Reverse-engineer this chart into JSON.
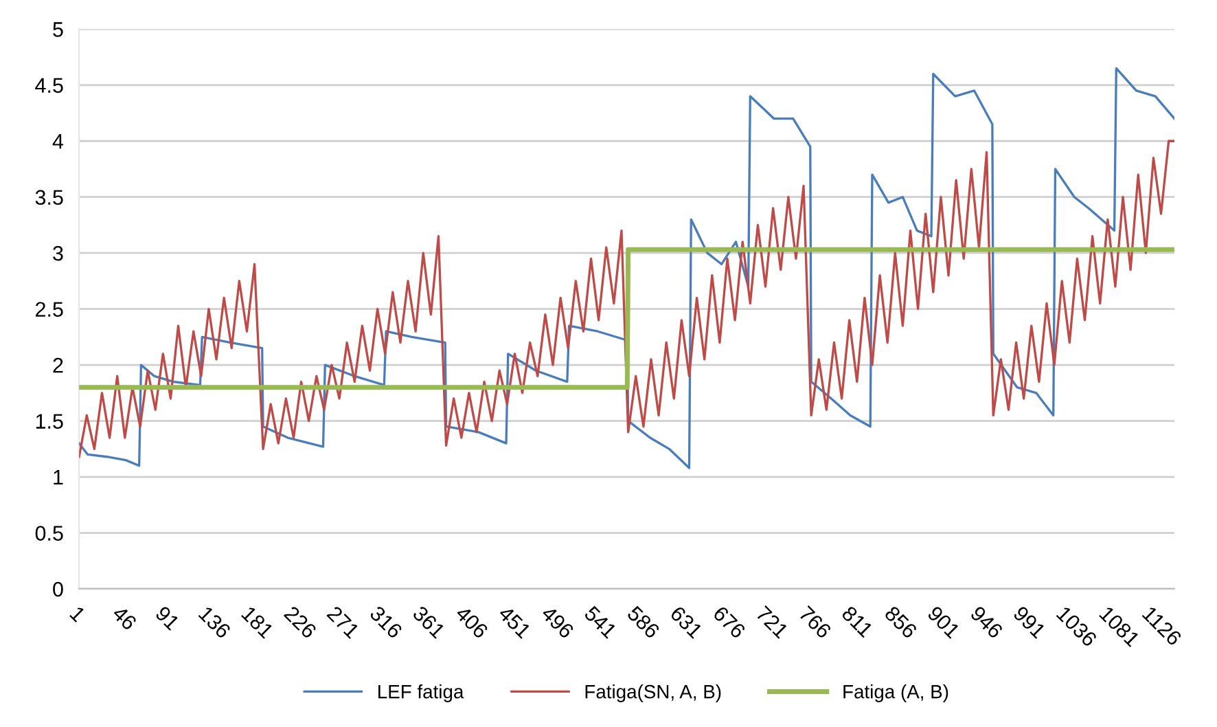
{
  "chart_data": {
    "type": "line",
    "xlim": [
      1,
      1150
    ],
    "xticks": [
      1,
      46,
      91,
      136,
      181,
      226,
      271,
      316,
      361,
      406,
      451,
      496,
      541,
      586,
      631,
      676,
      721,
      766,
      811,
      856,
      901,
      946,
      991,
      1036,
      1081,
      1126
    ],
    "ylim": [
      0,
      5
    ],
    "yticks": [
      0,
      0.5,
      1,
      1.5,
      2,
      2.5,
      3,
      3.5,
      4,
      4.5,
      5
    ],
    "grid": "y",
    "legend": "bottom",
    "series": [
      {
        "name": "LEF fatiga",
        "color": "#4a7ebb",
        "x": [
          1,
          10,
          30,
          50,
          64,
          66,
          80,
          100,
          128,
          130,
          160,
          193,
          194,
          220,
          257,
          259,
          290,
          321,
          323,
          350,
          385,
          386,
          420,
          449,
          451,
          480,
          513,
          515,
          545,
          576,
          577,
          600,
          620,
          641,
          643,
          660,
          675,
          690,
          703,
          705,
          730,
          750,
          768,
          769,
          790,
          810,
          831,
          833,
          850,
          865,
          880,
          895,
          897,
          920,
          940,
          959,
          960,
          985,
          1005,
          1023,
          1025,
          1045,
          1060,
          1087,
          1089,
          1110,
          1130,
          1150
        ],
        "values": [
          1.3,
          1.2,
          1.18,
          1.15,
          1.1,
          2.0,
          1.9,
          1.85,
          1.82,
          2.25,
          2.2,
          2.15,
          1.45,
          1.35,
          1.27,
          2.0,
          1.9,
          1.82,
          2.3,
          2.25,
          2.2,
          1.45,
          1.4,
          1.3,
          2.1,
          1.95,
          1.85,
          2.35,
          2.3,
          2.22,
          1.5,
          1.35,
          1.25,
          1.08,
          3.3,
          3.0,
          2.9,
          3.1,
          2.7,
          4.4,
          4.2,
          4.2,
          3.95,
          1.85,
          1.7,
          1.55,
          1.45,
          3.7,
          3.45,
          3.5,
          3.2,
          3.15,
          4.6,
          4.4,
          4.45,
          4.15,
          2.1,
          1.8,
          1.75,
          1.55,
          3.75,
          3.5,
          3.4,
          3.2,
          4.65,
          4.45,
          4.4,
          4.2
        ]
      },
      {
        "name": "Fatiga(SN, A, B)",
        "color": "#be4b48",
        "x": [
          1,
          9,
          17,
          25,
          33,
          41,
          49,
          57,
          65,
          73,
          81,
          89,
          97,
          105,
          113,
          121,
          129,
          137,
          145,
          153,
          161,
          169,
          177,
          185,
          194,
          202,
          210,
          218,
          226,
          234,
          242,
          250,
          258,
          266,
          274,
          282,
          290,
          298,
          306,
          314,
          322,
          330,
          338,
          346,
          354,
          362,
          370,
          378,
          386,
          394,
          402,
          410,
          418,
          426,
          434,
          442,
          450,
          458,
          466,
          474,
          482,
          490,
          498,
          506,
          514,
          522,
          530,
          538,
          546,
          554,
          562,
          570,
          577,
          585,
          593,
          601,
          609,
          617,
          625,
          633,
          641,
          649,
          657,
          665,
          673,
          681,
          689,
          697,
          705,
          713,
          721,
          729,
          737,
          745,
          753,
          761,
          769,
          777,
          785,
          793,
          801,
          809,
          817,
          825,
          833,
          841,
          849,
          857,
          865,
          873,
          881,
          889,
          897,
          905,
          913,
          921,
          929,
          937,
          945,
          953,
          960,
          968,
          976,
          984,
          992,
          1000,
          1008,
          1016,
          1024,
          1032,
          1040,
          1048,
          1056,
          1064,
          1072,
          1080,
          1088,
          1096,
          1104,
          1112,
          1120,
          1128,
          1136,
          1144,
          1150
        ],
        "values": [
          1.18,
          1.55,
          1.25,
          1.75,
          1.35,
          1.9,
          1.35,
          1.8,
          1.45,
          1.95,
          1.6,
          2.1,
          1.7,
          2.35,
          1.8,
          2.3,
          1.9,
          2.5,
          2.05,
          2.6,
          2.15,
          2.75,
          2.3,
          2.9,
          1.25,
          1.65,
          1.3,
          1.7,
          1.35,
          1.85,
          1.5,
          1.9,
          1.6,
          2.0,
          1.7,
          2.2,
          1.85,
          2.35,
          1.95,
          2.5,
          2.1,
          2.65,
          2.2,
          2.75,
          2.3,
          3.0,
          2.45,
          3.15,
          1.28,
          1.7,
          1.35,
          1.75,
          1.4,
          1.85,
          1.5,
          1.95,
          1.65,
          2.1,
          1.75,
          2.2,
          1.9,
          2.45,
          2.0,
          2.6,
          2.15,
          2.75,
          2.3,
          2.95,
          2.4,
          3.05,
          2.55,
          3.2,
          1.4,
          1.9,
          1.45,
          2.05,
          1.55,
          2.2,
          1.7,
          2.4,
          1.9,
          2.6,
          2.05,
          2.8,
          2.2,
          2.95,
          2.4,
          3.1,
          2.55,
          3.25,
          2.7,
          3.4,
          2.85,
          3.5,
          2.95,
          3.6,
          1.55,
          2.05,
          1.6,
          2.2,
          1.7,
          2.4,
          1.85,
          2.6,
          2.0,
          2.8,
          2.2,
          3.0,
          2.35,
          3.2,
          2.5,
          3.35,
          2.65,
          3.5,
          2.8,
          3.65,
          2.95,
          3.75,
          3.05,
          3.9,
          1.55,
          2.05,
          1.6,
          2.2,
          1.7,
          2.35,
          1.85,
          2.55,
          2.0,
          2.75,
          2.2,
          2.95,
          2.4,
          3.15,
          2.55,
          3.3,
          2.7,
          3.5,
          2.85,
          3.7,
          3.0,
          3.85,
          3.35,
          4.0,
          4.0
        ]
      },
      {
        "name": "Fatiga (A, B)",
        "color": "#98b954",
        "x": [
          1,
          576,
          577,
          1150
        ],
        "values": [
          1.8,
          1.8,
          3.03,
          3.03
        ]
      }
    ]
  }
}
